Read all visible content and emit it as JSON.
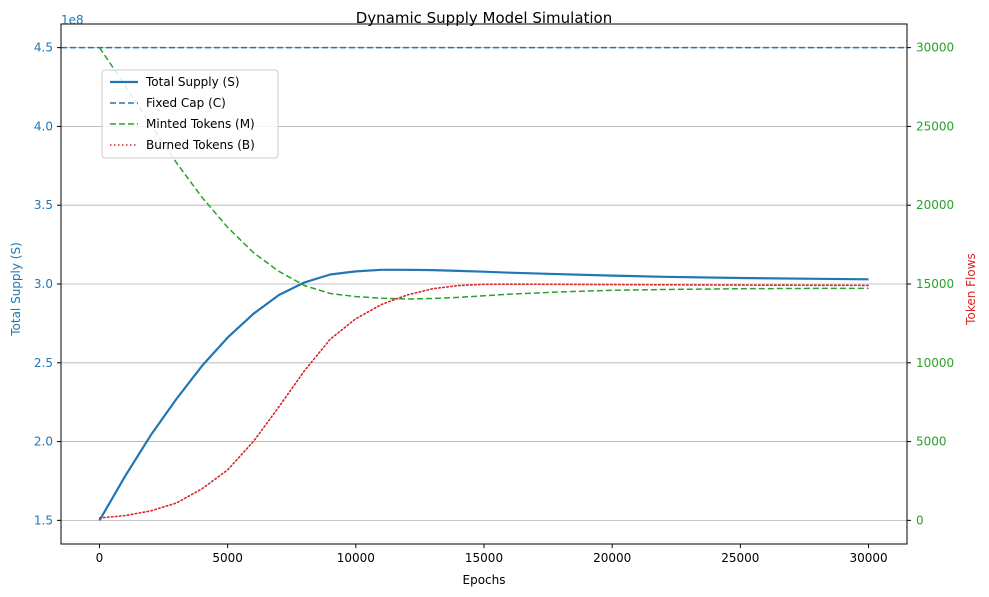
{
  "chart_data": {
    "type": "line",
    "title": "Dynamic Supply Model Simulation",
    "xlabel": "Epochs",
    "ylabel_left": "Total Supply (S)",
    "ylabel_right": "Token Flows",
    "left_offset_text": "1e8",
    "xlim": [
      -1500,
      31500
    ],
    "ylim_left": [
      1.35,
      4.65
    ],
    "ylim_right": [
      -1500,
      31500
    ],
    "x_ticks": [
      0,
      5000,
      10000,
      15000,
      20000,
      25000,
      30000
    ],
    "x_tick_labels": [
      "0",
      "5000",
      "10000",
      "15000",
      "20000",
      "25000",
      "30000"
    ],
    "y_left_ticks": [
      1.5,
      2.0,
      2.5,
      3.0,
      3.5,
      4.0,
      4.5
    ],
    "y_left_tick_labels": [
      "1.5",
      "2.0",
      "2.5",
      "3.0",
      "3.5",
      "4.0",
      "4.5"
    ],
    "y_right_ticks": [
      0,
      5000,
      10000,
      15000,
      20000,
      25000,
      30000
    ],
    "y_right_tick_labels": [
      "0",
      "5000",
      "10000",
      "15000",
      "20000",
      "25000",
      "30000"
    ],
    "grid": "horizontal (right axis)",
    "legend_position": "upper-left",
    "colors": {
      "left_axis": "#1f77b4",
      "right_axis": "#2ca02c",
      "right_label": "#d62728"
    },
    "series": [
      {
        "name": "Total Supply (S)",
        "axis": "left",
        "color": "#1f77b4",
        "style": "solid",
        "x": [
          0,
          1000,
          2000,
          3000,
          4000,
          5000,
          6000,
          7000,
          8000,
          9000,
          10000,
          11000,
          12000,
          13000,
          14000,
          15000,
          16000,
          18000,
          20000,
          22000,
          25000,
          28000,
          30000
        ],
        "y": [
          1.5,
          1.78,
          2.04,
          2.27,
          2.48,
          2.66,
          2.81,
          2.93,
          3.01,
          3.06,
          3.08,
          3.09,
          3.09,
          3.088,
          3.083,
          3.078,
          3.072,
          3.062,
          3.053,
          3.046,
          3.038,
          3.033,
          3.03
        ]
      },
      {
        "name": "Fixed Cap (C)",
        "axis": "left",
        "color": "#1f77b4",
        "style": "dashed",
        "x": [
          -1500,
          31500
        ],
        "y": [
          4.5,
          4.5
        ]
      },
      {
        "name": "Minted Tokens (M)",
        "axis": "right",
        "color": "#2ca02c",
        "style": "dashed",
        "x": [
          0,
          1000,
          2000,
          3000,
          4000,
          5000,
          6000,
          7000,
          8000,
          9000,
          10000,
          11000,
          12000,
          13000,
          14000,
          15000,
          16000,
          18000,
          20000,
          22000,
          25000,
          28000,
          30000
        ],
        "y": [
          30000,
          27600,
          25100,
          22700,
          20500,
          18600,
          17000,
          15800,
          14900,
          14400,
          14200,
          14100,
          14050,
          14080,
          14150,
          14250,
          14350,
          14500,
          14600,
          14650,
          14700,
          14720,
          14720
        ]
      },
      {
        "name": "Burned Tokens (B)",
        "axis": "right",
        "color": "#d62728",
        "style": "dotted",
        "x": [
          0,
          1000,
          2000,
          3000,
          4000,
          5000,
          6000,
          7000,
          8000,
          9000,
          10000,
          11000,
          12000,
          13000,
          14000,
          15000,
          16000,
          18000,
          20000,
          22000,
          25000,
          28000,
          30000
        ],
        "y": [
          150,
          300,
          600,
          1100,
          2000,
          3200,
          5000,
          7200,
          9500,
          11500,
          12800,
          13700,
          14300,
          14700,
          14900,
          14980,
          14990,
          14980,
          14960,
          14950,
          14930,
          14920,
          14910
        ]
      }
    ]
  }
}
